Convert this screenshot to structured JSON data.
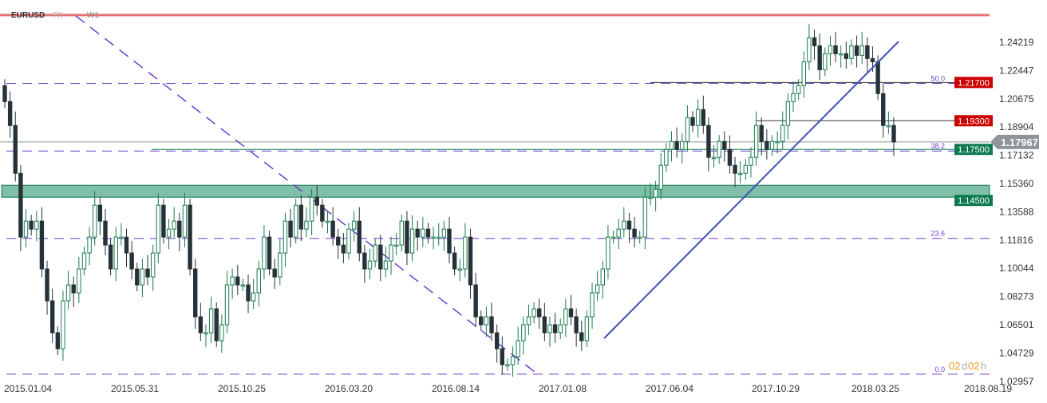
{
  "header": {
    "symbol": "EURUSD",
    "market": "FX",
    "timeframe": "W1"
  },
  "countdown": {
    "days": "02",
    "d": "d",
    "hours": "02",
    "h": "h"
  },
  "colors": {
    "bull": "#1a7a50",
    "bear": "#263238",
    "fib": "#6a3fd0",
    "resistance": "#cc0000",
    "support": "#0f7a50",
    "zone": "#7fbfa8",
    "trend": "#3f51b5",
    "current": "#8e9499"
  },
  "chart_data": {
    "type": "candlestick",
    "x_start": "2015.01.04",
    "x_end": "2018.03.25",
    "ylim": [
      1.02957,
      1.26
    ],
    "y_ticks": [
      "1.24219",
      "1.22447",
      "1.20675",
      "1.18904",
      "1.17132",
      "1.15360",
      "1.13588",
      "1.11816",
      "1.10044",
      "1.08273",
      "1.06501",
      "1.04729",
      "1.02957"
    ],
    "x_ticks": [
      "2015.01.04",
      "2015.05.31",
      "2015.10.25",
      "2016.03.20",
      "2016.08.14",
      "2017.01.08",
      "2017.06.04",
      "2017.10.29",
      "2018.03.25",
      "2018.08.19"
    ],
    "closes": [
      1.205,
      1.19,
      1.16,
      1.12,
      1.13,
      1.125,
      1.13,
      1.1,
      1.08,
      1.06,
      1.05,
      1.08,
      1.09,
      1.085,
      1.1,
      1.11,
      1.12,
      1.14,
      1.13,
      1.115,
      1.1,
      1.12,
      1.12,
      1.11,
      1.1,
      1.09,
      1.1,
      1.095,
      1.11,
      1.14,
      1.12,
      1.125,
      1.13,
      1.12,
      1.14,
      1.1,
      1.07,
      1.06,
      1.06,
      1.075,
      1.055,
      1.065,
      1.09,
      1.095,
      1.09,
      1.09,
      1.08,
      1.085,
      1.1,
      1.12,
      1.1,
      1.095,
      1.11,
      1.13,
      1.12,
      1.14,
      1.125,
      1.13,
      1.145,
      1.14,
      1.13,
      1.13,
      1.12,
      1.115,
      1.11,
      1.125,
      1.13,
      1.11,
      1.1,
      1.105,
      1.115,
      1.1,
      1.105,
      1.115,
      1.115,
      1.13,
      1.11,
      1.125,
      1.12,
      1.125,
      1.12,
      1.12,
      1.12,
      1.125,
      1.11,
      1.1,
      1.1,
      1.12,
      1.09,
      1.07,
      1.065,
      1.07,
      1.06,
      1.05,
      1.04,
      1.04,
      1.045,
      1.055,
      1.065,
      1.07,
      1.075,
      1.07,
      1.06,
      1.065,
      1.06,
      1.065,
      1.075,
      1.07,
      1.06,
      1.055,
      1.07,
      1.085,
      1.09,
      1.1,
      1.12,
      1.12,
      1.125,
      1.13,
      1.125,
      1.12,
      1.12,
      1.145,
      1.145,
      1.15,
      1.165,
      1.175,
      1.18,
      1.175,
      1.18,
      1.195,
      1.19,
      1.2,
      1.19,
      1.17,
      1.17,
      1.18,
      1.175,
      1.165,
      1.16,
      1.16,
      1.165,
      1.17,
      1.19,
      1.18,
      1.175,
      1.18,
      1.18,
      1.19,
      1.205,
      1.21,
      1.215,
      1.23,
      1.245,
      1.24,
      1.225,
      1.235,
      1.24,
      1.235,
      1.235,
      1.232,
      1.24,
      1.234,
      1.24,
      1.232,
      1.23,
      1.21,
      1.19,
      1.19,
      1.1797
    ],
    "current_price": "1.17967",
    "levels": [
      {
        "label": "1.21700",
        "price": 1.217,
        "kind": "resistance"
      },
      {
        "label": "1.19300",
        "price": 1.193,
        "kind": "resistance"
      },
      {
        "label": "1.17500",
        "price": 1.175,
        "kind": "support"
      },
      {
        "label": "1.14500",
        "price": 1.145,
        "kind": "support"
      }
    ],
    "zone": [
      1.145,
      1.1525
    ],
    "top_line_price": 1.2593,
    "fibonacci": [
      {
        "label": "0.0",
        "price": 1.034
      },
      {
        "label": "23.6",
        "price": 1.1192
      },
      {
        "label": "38.2",
        "price": 1.174
      },
      {
        "label": "50.0",
        "price": 1.2164
      }
    ]
  }
}
